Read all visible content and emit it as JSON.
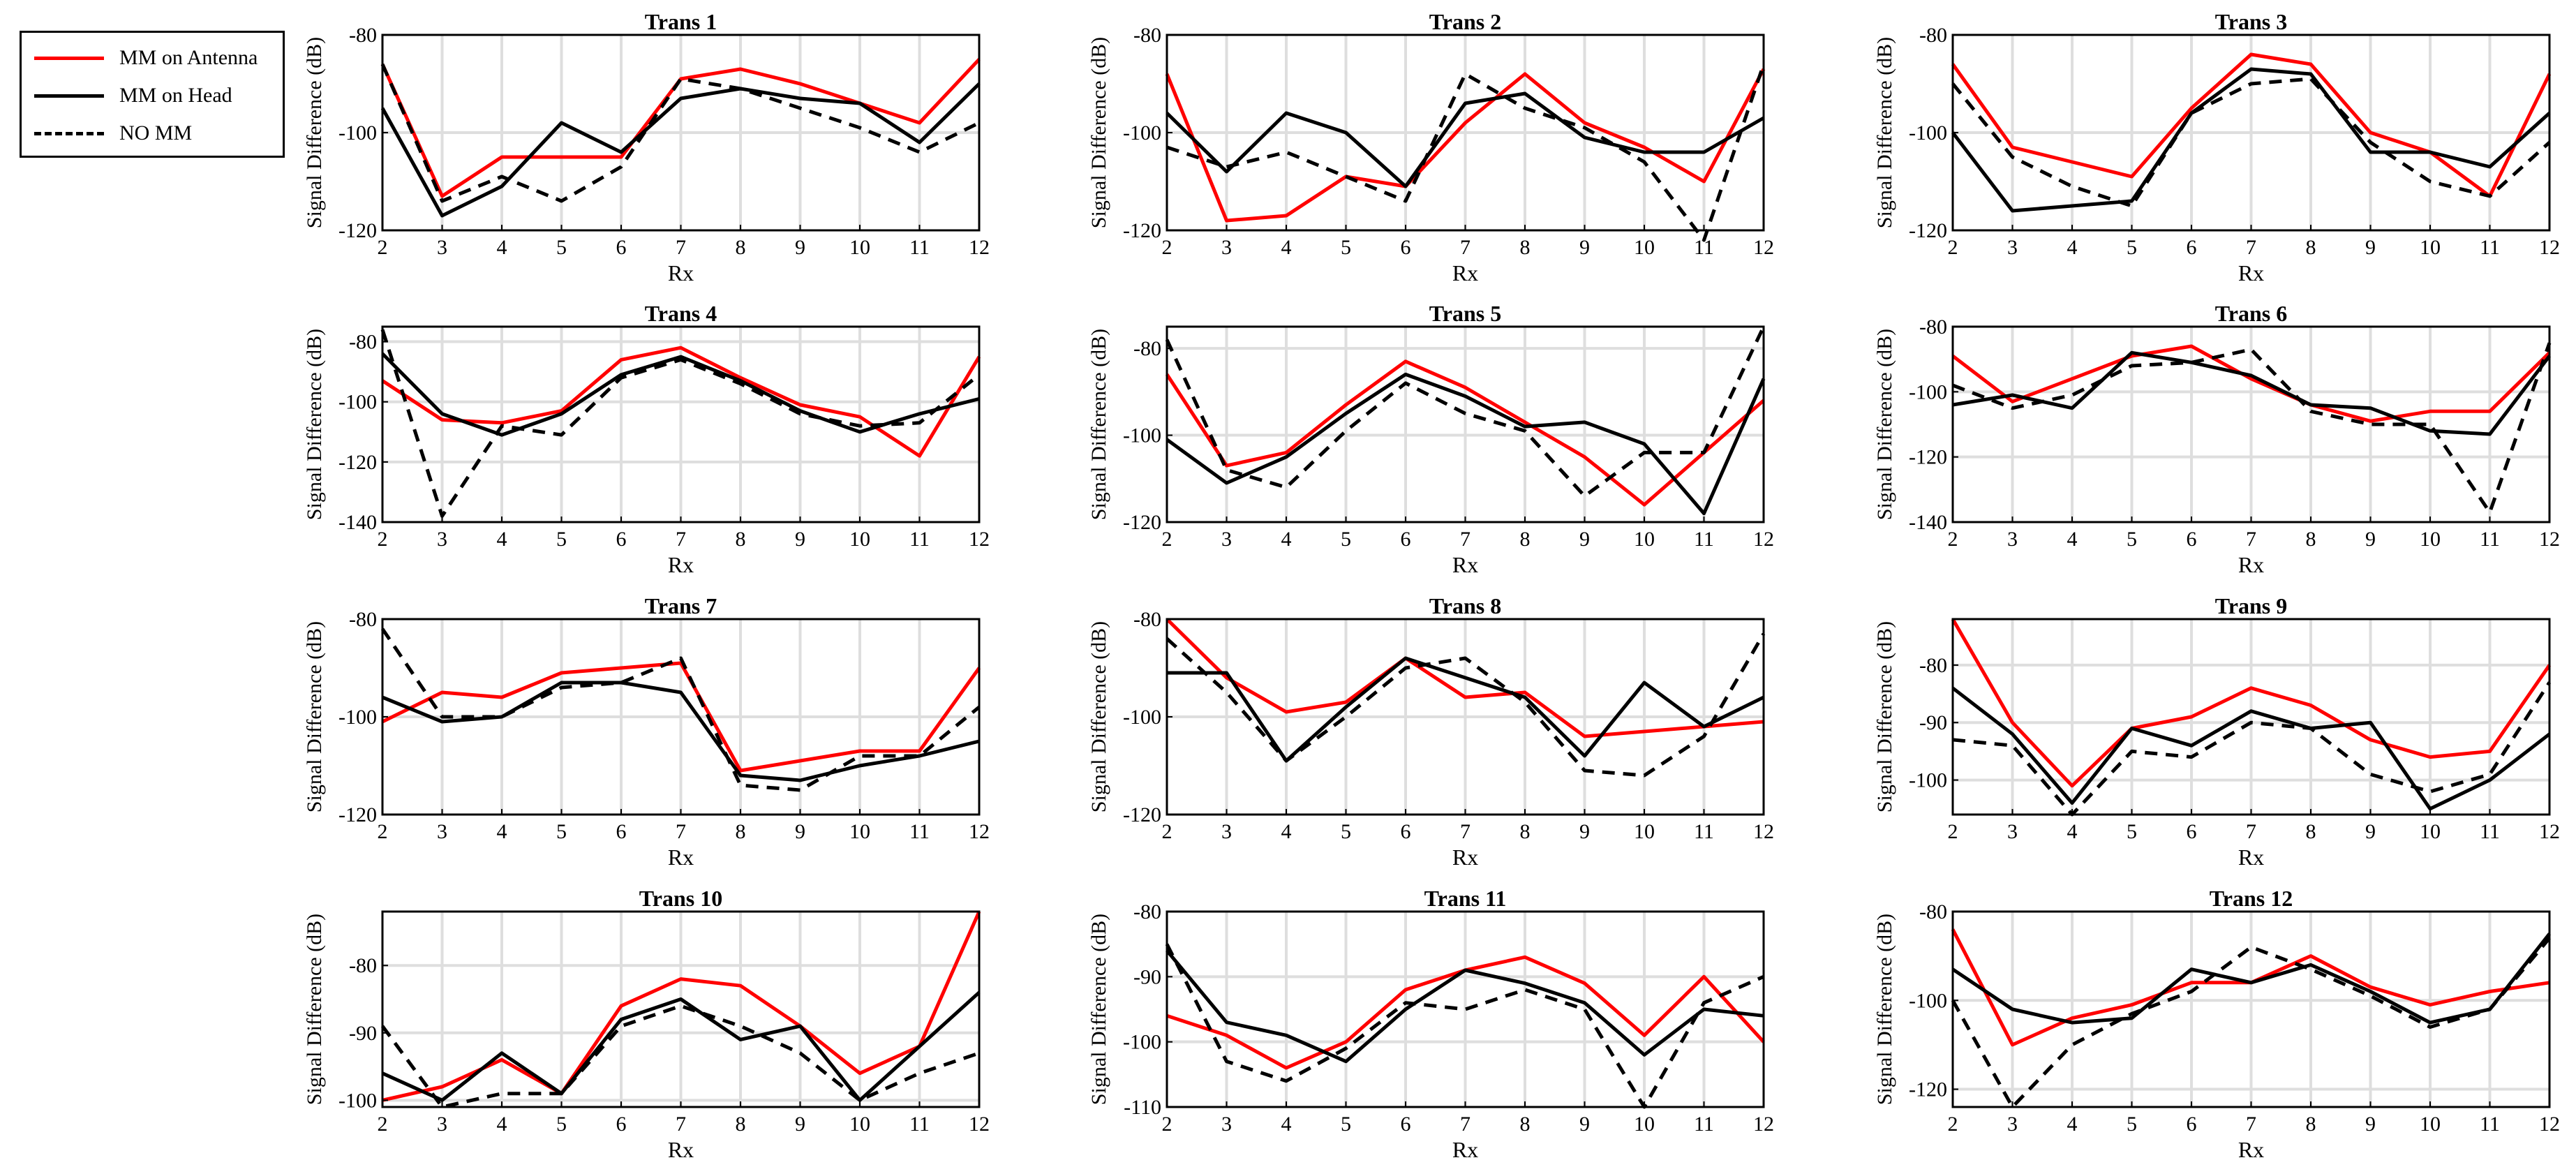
{
  "legend": {
    "items": [
      {
        "label": "MM on Antenna",
        "color": "#ff0000",
        "dash": "solid"
      },
      {
        "label": "MM on Head",
        "color": "#000000",
        "dash": "solid"
      },
      {
        "label": "NO MM",
        "color": "#000000",
        "dash": "dashed"
      }
    ]
  },
  "chart_data": [
    {
      "type": "line",
      "title": "Trans 1",
      "xlabel": "Rx",
      "ylabel": "Signal Difference (dB)",
      "x": [
        2,
        3,
        4,
        5,
        6,
        7,
        8,
        9,
        10,
        11,
        12
      ],
      "xlim": [
        2,
        12
      ],
      "ylim": [
        -120,
        -80
      ],
      "yticks": [
        -120,
        -100,
        -80
      ],
      "grid": true,
      "series": [
        {
          "name": "MM on Antenna",
          "values": [
            -86,
            -113,
            -105,
            -105,
            -105,
            -89,
            -87,
            -90,
            -94,
            -98,
            -85
          ]
        },
        {
          "name": "MM on Head",
          "values": [
            -95,
            -117,
            -111,
            -98,
            -104,
            -93,
            -91,
            -93,
            -94,
            -102,
            -90
          ]
        },
        {
          "name": "NO MM",
          "values": [
            -86,
            -114,
            -109,
            -114,
            -107,
            -89,
            -91,
            -95,
            -99,
            -104,
            -98
          ]
        }
      ]
    },
    {
      "type": "line",
      "title": "Trans 2",
      "xlabel": "Rx",
      "ylabel": "Signal Difference (dB)",
      "x": [
        2,
        3,
        4,
        5,
        6,
        7,
        8,
        9,
        10,
        11,
        12
      ],
      "xlim": [
        2,
        12
      ],
      "ylim": [
        -120,
        -80
      ],
      "yticks": [
        -120,
        -100,
        -80
      ],
      "grid": true,
      "series": [
        {
          "name": "MM on Antenna",
          "values": [
            -88,
            -118,
            -117,
            -109,
            -111,
            -98,
            -88,
            -98,
            -103,
            -110,
            -87
          ]
        },
        {
          "name": "MM on Head",
          "values": [
            -96,
            -108,
            -96,
            -100,
            -111,
            -94,
            -92,
            -101,
            -104,
            -104,
            -97
          ]
        },
        {
          "name": "NO MM",
          "values": [
            -103,
            -107,
            -104,
            -109,
            -114,
            -88,
            -95,
            -99,
            -106,
            -122,
            -86
          ]
        }
      ]
    },
    {
      "type": "line",
      "title": "Trans 3",
      "xlabel": "Rx",
      "ylabel": "Signal Difference (dB)",
      "x": [
        2,
        3,
        4,
        5,
        6,
        7,
        8,
        9,
        10,
        11,
        12
      ],
      "xlim": [
        2,
        12
      ],
      "ylim": [
        -120,
        -80
      ],
      "yticks": [
        -120,
        -100,
        -80
      ],
      "grid": true,
      "series": [
        {
          "name": "MM on Antenna",
          "values": [
            -86,
            -103,
            -106,
            -109,
            -95,
            -84,
            -86,
            -100,
            -104,
            -113,
            -88
          ]
        },
        {
          "name": "MM on Head",
          "values": [
            -100,
            -116,
            -115,
            -114,
            -96,
            -87,
            -88,
            -104,
            -104,
            -107,
            -96
          ]
        },
        {
          "name": "NO MM",
          "values": [
            -90,
            -105,
            -111,
            -115,
            -96,
            -90,
            -89,
            -102,
            -110,
            -113,
            -102
          ]
        }
      ]
    },
    {
      "type": "line",
      "title": "Trans 4",
      "xlabel": "Rx",
      "ylabel": "Signal Difference (dB)",
      "x": [
        2,
        3,
        4,
        5,
        6,
        7,
        8,
        9,
        10,
        11,
        12
      ],
      "xlim": [
        2,
        12
      ],
      "ylim": [
        -140,
        -75
      ],
      "yticks": [
        -140,
        -120,
        -100,
        -80
      ],
      "grid": true,
      "series": [
        {
          "name": "MM on Antenna",
          "values": [
            -93,
            -106,
            -107,
            -103,
            -86,
            -82,
            -92,
            -101,
            -105,
            -118,
            -85
          ]
        },
        {
          "name": "MM on Head",
          "values": [
            -84,
            -104,
            -111,
            -104,
            -91,
            -85,
            -93,
            -103,
            -110,
            -104,
            -99
          ]
        },
        {
          "name": "NO MM",
          "values": [
            -76,
            -138,
            -108,
            -111,
            -92,
            -86,
            -94,
            -104,
            -108,
            -107,
            -91
          ]
        }
      ]
    },
    {
      "type": "line",
      "title": "Trans 5",
      "xlabel": "Rx",
      "ylabel": "Signal Difference (dB)",
      "x": [
        2,
        3,
        4,
        5,
        6,
        7,
        8,
        9,
        10,
        11,
        12
      ],
      "xlim": [
        2,
        12
      ],
      "ylim": [
        -120,
        -75
      ],
      "yticks": [
        -120,
        -100,
        -80
      ],
      "grid": true,
      "series": [
        {
          "name": "MM on Antenna",
          "values": [
            -86,
            -107,
            -104,
            -93,
            -83,
            -89,
            -97,
            -105,
            -116,
            -104,
            -92
          ]
        },
        {
          "name": "MM on Head",
          "values": [
            -101,
            -111,
            -105,
            -95,
            -86,
            -91,
            -98,
            -97,
            -102,
            -118,
            -87
          ]
        },
        {
          "name": "NO MM",
          "values": [
            -78,
            -108,
            -112,
            -99,
            -88,
            -95,
            -99,
            -114,
            -104,
            -104,
            -75
          ]
        }
      ]
    },
    {
      "type": "line",
      "title": "Trans 6",
      "xlabel": "Rx",
      "ylabel": "Signal Difference (dB)",
      "x": [
        2,
        3,
        4,
        5,
        6,
        7,
        8,
        9,
        10,
        11,
        12
      ],
      "xlim": [
        2,
        12
      ],
      "ylim": [
        -140,
        -80
      ],
      "yticks": [
        -140,
        -120,
        -100,
        -80
      ],
      "grid": true,
      "series": [
        {
          "name": "MM on Antenna",
          "values": [
            -89,
            -103,
            -96,
            -89,
            -86,
            -96,
            -104,
            -109,
            -106,
            -106,
            -88
          ]
        },
        {
          "name": "MM on Head",
          "values": [
            -104,
            -101,
            -105,
            -88,
            -91,
            -95,
            -104,
            -105,
            -112,
            -113,
            -89
          ]
        },
        {
          "name": "NO MM",
          "values": [
            -98,
            -105,
            -101,
            -92,
            -91,
            -87,
            -106,
            -110,
            -110,
            -137,
            -85
          ]
        }
      ]
    },
    {
      "type": "line",
      "title": "Trans 7",
      "xlabel": "Rx",
      "ylabel": "Signal Difference (dB)",
      "x": [
        2,
        3,
        4,
        5,
        6,
        7,
        8,
        9,
        10,
        11,
        12
      ],
      "xlim": [
        2,
        12
      ],
      "ylim": [
        -120,
        -80
      ],
      "yticks": [
        -120,
        -100,
        -80
      ],
      "grid": true,
      "series": [
        {
          "name": "MM on Antenna",
          "values": [
            -101,
            -95,
            -96,
            -91,
            -90,
            -89,
            -111,
            -109,
            -107,
            -107,
            -90
          ]
        },
        {
          "name": "MM on Head",
          "values": [
            -96,
            -101,
            -100,
            -93,
            -93,
            -95,
            -112,
            -113,
            -110,
            -108,
            -105
          ]
        },
        {
          "name": "NO MM",
          "values": [
            -82,
            -100,
            -100,
            -94,
            -93,
            -88,
            -114,
            -115,
            -108,
            -108,
            -98
          ]
        }
      ]
    },
    {
      "type": "line",
      "title": "Trans 8",
      "xlabel": "Rx",
      "ylabel": "Signal Difference (dB)",
      "x": [
        2,
        3,
        4,
        5,
        6,
        7,
        8,
        9,
        10,
        11,
        12
      ],
      "xlim": [
        2,
        12
      ],
      "ylim": [
        -120,
        -80
      ],
      "yticks": [
        -120,
        -100,
        -80
      ],
      "grid": true,
      "series": [
        {
          "name": "MM on Antenna",
          "values": [
            -80,
            -92,
            -99,
            -97,
            -88,
            -96,
            -95,
            -104,
            -103,
            -102,
            -101
          ]
        },
        {
          "name": "MM on Head",
          "values": [
            -91,
            -91,
            -109,
            -98,
            -88,
            -92,
            -96,
            -108,
            -93,
            -102,
            -96
          ]
        },
        {
          "name": "NO MM",
          "values": [
            -84,
            -95,
            -109,
            -100,
            -90,
            -88,
            -97,
            -111,
            -112,
            -104,
            -83
          ]
        }
      ]
    },
    {
      "type": "line",
      "title": "Trans 9",
      "xlabel": "Rx",
      "ylabel": "Signal Difference (dB)",
      "x": [
        2,
        3,
        4,
        5,
        6,
        7,
        8,
        9,
        10,
        11,
        12
      ],
      "xlim": [
        2,
        12
      ],
      "ylim": [
        -106,
        -72
      ],
      "yticks": [
        -100,
        -90,
        -80
      ],
      "grid": true,
      "series": [
        {
          "name": "MM on Antenna",
          "values": [
            -72,
            -90,
            -101,
            -91,
            -89,
            -84,
            -87,
            -93,
            -96,
            -95,
            -80
          ]
        },
        {
          "name": "MM on Head",
          "values": [
            -84,
            -92,
            -104,
            -91,
            -94,
            -88,
            -91,
            -90,
            -105,
            -100,
            -92
          ]
        },
        {
          "name": "NO MM",
          "values": [
            -93,
            -94,
            -106,
            -95,
            -96,
            -90,
            -91,
            -99,
            -102,
            -99,
            -83
          ]
        }
      ]
    },
    {
      "type": "line",
      "title": "Trans 10",
      "xlabel": "Rx",
      "ylabel": "Signal Difference (dB)",
      "x": [
        2,
        3,
        4,
        5,
        6,
        7,
        8,
        9,
        10,
        11,
        12
      ],
      "xlim": [
        2,
        12
      ],
      "ylim": [
        -101,
        -72
      ],
      "yticks": [
        -100,
        -90,
        -80
      ],
      "grid": true,
      "series": [
        {
          "name": "MM on Antenna",
          "values": [
            -100,
            -98,
            -94,
            -99,
            -86,
            -82,
            -83,
            -89,
            -96,
            -92,
            -72
          ]
        },
        {
          "name": "MM on Head",
          "values": [
            -96,
            -100,
            -93,
            -99,
            -88,
            -85,
            -91,
            -89,
            -100,
            -92,
            -84
          ]
        },
        {
          "name": "NO MM",
          "values": [
            -89,
            -101,
            -99,
            -99,
            -89,
            -86,
            -89,
            -93,
            -100,
            -96,
            -93
          ]
        }
      ]
    },
    {
      "type": "line",
      "title": "Trans 11",
      "xlabel": "Rx",
      "ylabel": "Signal Difference (dB)",
      "x": [
        2,
        3,
        4,
        5,
        6,
        7,
        8,
        9,
        10,
        11,
        12
      ],
      "xlim": [
        2,
        12
      ],
      "ylim": [
        -110,
        -80
      ],
      "yticks": [
        -110,
        -100,
        -90,
        -80
      ],
      "grid": true,
      "series": [
        {
          "name": "MM on Antenna",
          "values": [
            -96,
            -99,
            -104,
            -100,
            -92,
            -89,
            -87,
            -91,
            -99,
            -90,
            -100
          ]
        },
        {
          "name": "MM on Head",
          "values": [
            -86,
            -97,
            -99,
            -103,
            -95,
            -89,
            -91,
            -94,
            -102,
            -95,
            -96
          ]
        },
        {
          "name": "NO MM",
          "values": [
            -85,
            -103,
            -106,
            -101,
            -94,
            -95,
            -92,
            -95,
            -110,
            -94,
            -90
          ]
        }
      ]
    },
    {
      "type": "line",
      "title": "Trans 12",
      "xlabel": "Rx",
      "ylabel": "Signal Difference (dB)",
      "x": [
        2,
        3,
        4,
        5,
        6,
        7,
        8,
        9,
        10,
        11,
        12
      ],
      "xlim": [
        2,
        12
      ],
      "ylim": [
        -124,
        -80
      ],
      "yticks": [
        -120,
        -100,
        -80
      ],
      "grid": true,
      "series": [
        {
          "name": "MM on Antenna",
          "values": [
            -84,
            -110,
            -104,
            -101,
            -96,
            -96,
            -90,
            -97,
            -101,
            -98,
            -96
          ]
        },
        {
          "name": "MM on Head",
          "values": [
            -93,
            -102,
            -105,
            -104,
            -93,
            -96,
            -92,
            -98,
            -105,
            -102,
            -85
          ]
        },
        {
          "name": "NO MM",
          "values": [
            -100,
            -124,
            -110,
            -103,
            -98,
            -88,
            -93,
            -99,
            -106,
            -102,
            -86
          ]
        }
      ]
    }
  ]
}
